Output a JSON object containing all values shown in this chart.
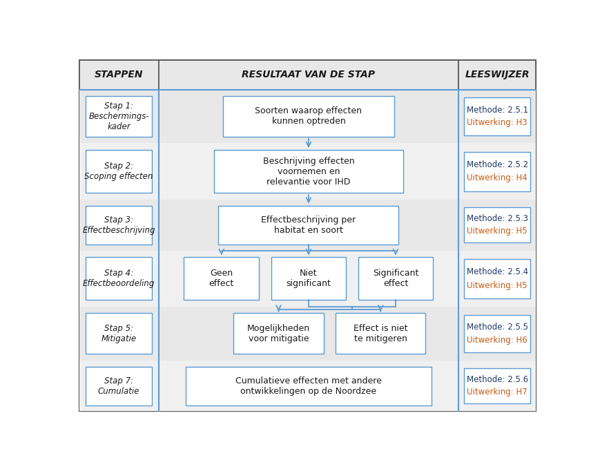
{
  "white": "#ffffff",
  "box_border": "#5b9bd5",
  "text_dark": "#1a1a1a",
  "text_blue": "#1f3864",
  "text_orange": "#c55a11",
  "arrow_color": "#5b9bd5",
  "row_stripe_odd": "#ebebeb",
  "row_stripe_even": "#f5f5f5",
  "header_bg": "#e0e0e0",
  "outer_border": "#555555",
  "stappen": [
    "Stap 1:\nBeschermings-\nkader",
    "Stap 2:\nScoping effecten",
    "Stap 3:\nEffectbeschrijving",
    "Stap 4:\nEffectbeoordeling",
    "Stap 5:\nMitigatie",
    "Stap 7:\nCumulatie"
  ],
  "leeswijzer_line1": [
    "Methode: 2.5.1",
    "Methode: 2.5.2",
    "Methode: 2.5.3",
    "Methode: 2.5.4",
    "Methode: 2.5.5",
    "Methode: 2.5.6"
  ],
  "leeswijzer_line2": [
    "Uitwerking: H3",
    "Uitwerking: H4",
    "Uitwerking: H5",
    "Uitwerking: H5",
    "Uitwerking: H6",
    "Uitwerking: H7"
  ]
}
